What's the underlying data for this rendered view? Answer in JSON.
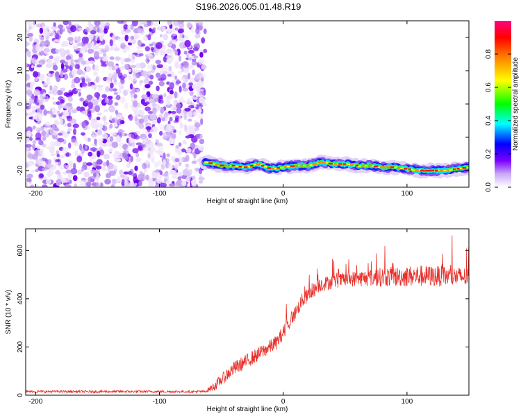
{
  "title": "S196.2026.005.01.48.R19",
  "chart_data": [
    {
      "type": "heatmap",
      "xlabel": "Height of straight line (km)",
      "ylabel": "Frequency (Hz)",
      "xlim": [
        -208,
        150
      ],
      "ylim": [
        -25,
        25
      ],
      "xticks": [
        -200,
        -100,
        0,
        100
      ],
      "yticks": [
        20,
        10,
        0,
        -10,
        -20
      ],
      "xtick_labels": [
        "-200",
        "-100",
        "0",
        "100"
      ],
      "ytick_labels": [
        "20",
        "10",
        "0",
        "-10",
        "-20"
      ],
      "colorbar": {
        "label": "Normalized spectral amplitude",
        "range": [
          0,
          1
        ],
        "ticks": [
          "0.0",
          "0.2",
          "0.4",
          "0.6",
          "0.8"
        ],
        "colors": [
          "#ffffff",
          "#7a00ff",
          "#0000ff",
          "#00ffff",
          "#00ff00",
          "#ffff00",
          "#ff8000",
          "#ff0000",
          "#ff0080"
        ]
      },
      "noise_region": {
        "x": [
          -208,
          -63
        ],
        "amplitude": "low (0.0-0.2)"
      },
      "signal_ridge": {
        "x": [
          -63,
          -50,
          -40,
          -30,
          -20,
          -10,
          0,
          10,
          20,
          30,
          40,
          50,
          60,
          70,
          80,
          90,
          100,
          110,
          120,
          130,
          140,
          150
        ],
        "freq": [
          -17.5,
          -18.5,
          -18.5,
          -19,
          -18,
          -19.5,
          -19,
          -18.5,
          -18.5,
          -17.5,
          -18,
          -18,
          -18.5,
          -18.5,
          -19,
          -19,
          -19.5,
          -20,
          -20,
          -20,
          -19.5,
          -19
        ],
        "peak_amplitude": 0.95
      }
    },
    {
      "type": "line",
      "xlabel": "Height of straight line (km)",
      "ylabel": "SNR (10 * v/v)",
      "xlim": [
        -208,
        150
      ],
      "ylim": [
        0,
        690
      ],
      "xticks": [
        -200,
        -100,
        0,
        100
      ],
      "yticks": [
        0,
        200,
        400,
        600
      ],
      "xtick_labels": [
        "-200",
        "-100",
        "0",
        "100"
      ],
      "ytick_labels": [
        "0",
        "200",
        "400",
        "600"
      ],
      "color": "#e8302a",
      "envelope": {
        "x": [
          -208,
          -63,
          -55,
          -40,
          -20,
          -5,
          5,
          15,
          30,
          50,
          80,
          110,
          150
        ],
        "mean": [
          15,
          15,
          40,
          110,
          170,
          220,
          300,
          390,
          460,
          480,
          490,
          495,
          490
        ],
        "spread": [
          10,
          10,
          40,
          60,
          60,
          60,
          60,
          60,
          60,
          60,
          80,
          90,
          80
        ]
      }
    }
  ]
}
